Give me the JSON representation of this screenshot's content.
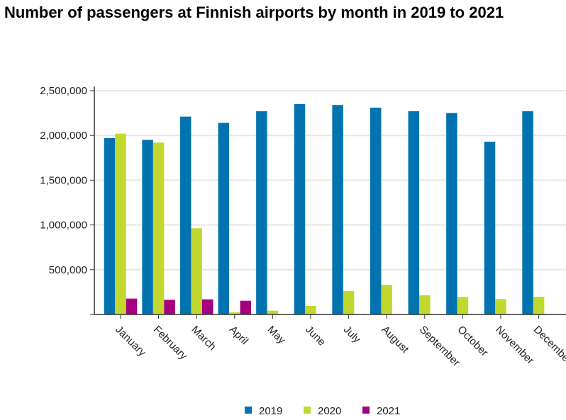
{
  "chart_data": {
    "type": "bar",
    "title": "Number of passengers at Finnish airports by month in 2019 to 2021",
    "xlabel": "",
    "ylabel": "",
    "ylim": [
      0,
      2500000
    ],
    "yticks": [
      0,
      500000,
      1000000,
      1500000,
      2000000,
      2500000
    ],
    "ytick_labels": [
      "",
      "500,000",
      "1,000,000",
      "1,500,000",
      "2,000,000",
      "2,500,000"
    ],
    "grid": true,
    "legend_position": "bottom",
    "categories": [
      "January",
      "February",
      "March",
      "April",
      "May",
      "June",
      "July",
      "August",
      "September",
      "October",
      "November",
      "December"
    ],
    "series": [
      {
        "name": "2019",
        "color": "#0073b0",
        "values": [
          1970000,
          1950000,
          2210000,
          2140000,
          2270000,
          2350000,
          2340000,
          2310000,
          2270000,
          2250000,
          1930000,
          2270000
        ]
      },
      {
        "name": "2020",
        "color": "#c2d82e",
        "values": [
          2020000,
          1920000,
          963000,
          24000,
          42000,
          95000,
          262000,
          331000,
          214000,
          196000,
          172000,
          198000
        ]
      },
      {
        "name": "2021",
        "color": "#a4007f",
        "values": [
          177000,
          164000,
          169000,
          153000,
          null,
          null,
          null,
          null,
          null,
          null,
          null,
          null
        ]
      }
    ]
  }
}
